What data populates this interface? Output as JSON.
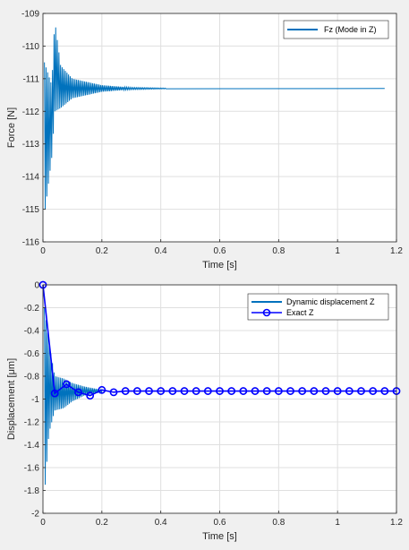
{
  "chart_data": [
    {
      "type": "line",
      "xlabel": "Time [s]",
      "ylabel": "Force [N]",
      "xlim": [
        0,
        1.2
      ],
      "ylim": [
        -116,
        -109
      ],
      "xticks": [
        "0",
        "0.2",
        "0.4",
        "0.6",
        "0.8",
        "1",
        "1.2"
      ],
      "yticks": [
        "-109",
        "-110",
        "-111",
        "-112",
        "-113",
        "-114",
        "-115",
        "-116"
      ],
      "grid": true,
      "legend_position": "top-right",
      "series": [
        {
          "name": "Fz (Mode in Z)",
          "color": "#0072bd",
          "style": "damped-oscillation",
          "steady_value": -111.3,
          "end_time": 1.16,
          "envelope": [
            {
              "x": 0.005,
              "min": -115.2,
              "max": -110.5
            },
            {
              "x": 0.03,
              "min": -113.4,
              "max": -111.2
            },
            {
              "x": 0.04,
              "min": -112.0,
              "max": -109.2
            },
            {
              "x": 0.06,
              "min": -111.9,
              "max": -110.6
            },
            {
              "x": 0.1,
              "min": -111.6,
              "max": -111.0
            },
            {
              "x": 0.15,
              "min": -111.5,
              "max": -111.1
            },
            {
              "x": 0.2,
              "min": -111.4,
              "max": -111.2
            },
            {
              "x": 0.3,
              "min": -111.33,
              "max": -111.27
            },
            {
              "x": 0.42,
              "min": -111.31,
              "max": -111.29
            }
          ]
        }
      ]
    },
    {
      "type": "line",
      "xlabel": "Time [s]",
      "ylabel": "Displacement [μm]",
      "xlim": [
        0,
        1.2
      ],
      "ylim": [
        -2,
        0
      ],
      "xticks": [
        "0",
        "0.2",
        "0.4",
        "0.6",
        "0.8",
        "1",
        "1.2"
      ],
      "yticks": [
        "0",
        "-0.2",
        "-0.4",
        "-0.6",
        "-0.8",
        "-1",
        "-1.2",
        "-1.4",
        "-1.6",
        "-1.8",
        "-2"
      ],
      "grid": true,
      "legend_position": "top-right",
      "series": [
        {
          "name": "Dynamic displacement Z",
          "color": "#0072bd",
          "style": "damped-oscillation",
          "steady_value": -0.93,
          "end_time": 0.2,
          "envelope": [
            {
              "x": 0.005,
              "min": -1.85,
              "max": -0.2
            },
            {
              "x": 0.02,
              "min": -1.3,
              "max": -0.5
            },
            {
              "x": 0.04,
              "min": -1.1,
              "max": -0.8
            },
            {
              "x": 0.07,
              "min": -1.08,
              "max": -0.82
            },
            {
              "x": 0.1,
              "min": -1.02,
              "max": -0.86
            },
            {
              "x": 0.14,
              "min": -0.97,
              "max": -0.89
            },
            {
              "x": 0.2,
              "min": -0.94,
              "max": -0.92
            }
          ]
        },
        {
          "name": "Exact Z",
          "color": "#0000ff",
          "marker": "o",
          "x": [
            0,
            0.04,
            0.08,
            0.12,
            0.16,
            0.2,
            0.24,
            0.28,
            0.32,
            0.36,
            0.4,
            0.44,
            0.48,
            0.52,
            0.56,
            0.6,
            0.64,
            0.68,
            0.72,
            0.76,
            0.8,
            0.84,
            0.88,
            0.92,
            0.96,
            1.0,
            1.04,
            1.08,
            1.12,
            1.16,
            1.2
          ],
          "y": [
            0,
            -0.95,
            -0.87,
            -0.94,
            -0.97,
            -0.92,
            -0.94,
            -0.93,
            -0.93,
            -0.93,
            -0.93,
            -0.93,
            -0.93,
            -0.93,
            -0.93,
            -0.93,
            -0.93,
            -0.93,
            -0.93,
            -0.93,
            -0.93,
            -0.93,
            -0.93,
            -0.93,
            -0.93,
            -0.93,
            -0.93,
            -0.93,
            -0.93,
            -0.93,
            -0.93
          ]
        }
      ]
    }
  ]
}
